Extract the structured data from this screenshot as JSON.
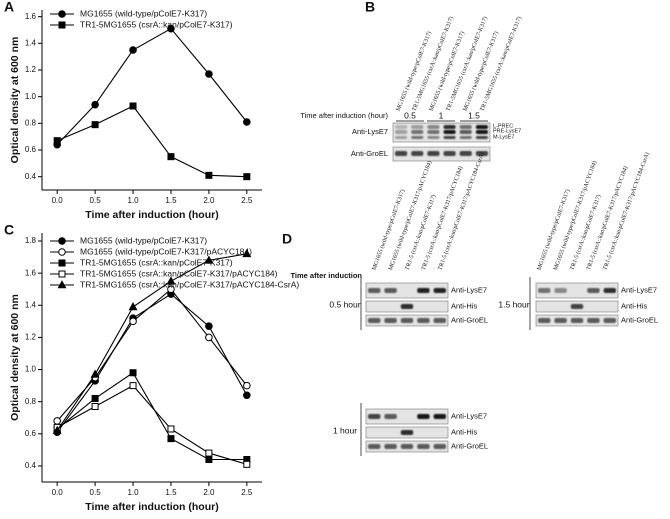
{
  "chart_data": [
    {
      "type": "line",
      "label": "A",
      "xlabel": "Time after induction (hour)",
      "ylabel": "Optical density at 600 nm",
      "x": [
        0,
        0.5,
        1,
        1.5,
        2,
        2.5
      ],
      "xlim": [
        -0.2,
        2.7
      ],
      "ylim": [
        0.3,
        1.65
      ],
      "xticks": [
        {
          "value": 0,
          "label": "0.0"
        },
        0.5,
        {
          "value": 1,
          "label": "1.0"
        },
        1.5,
        {
          "value": 2,
          "label": "2.0"
        },
        2.5
      ],
      "yticks": [
        0.4,
        0.6,
        0.8,
        {
          "value": 1,
          "label": "1.0"
        },
        1.2,
        1.4,
        1.6
      ],
      "grid": false,
      "legend": "upper left",
      "series": [
        {
          "name": "MG1655 (wild-type/pColE7-K317)",
          "color": "#000000",
          "marker": "circle",
          "values": [
            0.64,
            0.94,
            1.35,
            1.51,
            1.17,
            0.81
          ]
        },
        {
          "name": "TR1-5MG1655 (csrA::kan/pColE7-K317)",
          "color": "#000000",
          "marker": "square",
          "values": [
            0.67,
            0.79,
            0.93,
            0.55,
            0.41,
            0.4
          ]
        }
      ]
    },
    {
      "type": "line",
      "label": "C",
      "xlabel": "Time after induction (hour)",
      "ylabel": "Optical density at 600 nm",
      "x": [
        0,
        0.5,
        1,
        1.5,
        2,
        2.5
      ],
      "xlim": [
        -0.2,
        2.7
      ],
      "ylim": [
        0.3,
        1.85
      ],
      "xticks": [
        {
          "value": 0,
          "label": "0.0"
        },
        0.5,
        {
          "value": 1,
          "label": "1.0"
        },
        1.5,
        {
          "value": 2,
          "label": "2.0"
        },
        2.5
      ],
      "yticks": [
        0.4,
        0.6,
        0.8,
        {
          "value": 1,
          "label": "1.0"
        },
        1.2,
        1.4,
        1.6,
        1.8
      ],
      "grid": false,
      "legend": "upper left",
      "series": [
        {
          "name": "MG1655 (wild-type/pColE7-K317)",
          "color": "#000000",
          "marker": "circle",
          "values": [
            0.61,
            0.93,
            1.32,
            1.47,
            1.27,
            0.84
          ]
        },
        {
          "name": "MG1655 (wild-type/pColE7-K317/pACYC184)",
          "color": "#000000",
          "marker": "circle-open",
          "values": [
            0.68,
            0.95,
            1.3,
            1.5,
            1.2,
            0.9
          ]
        },
        {
          "name": "TR1-5MG1655 (csrA::kan/pColE7-K317)",
          "color": "#000000",
          "marker": "square",
          "values": [
            0.63,
            0.82,
            0.98,
            0.57,
            0.44,
            0.44
          ]
        },
        {
          "name": "TR1-5MG1655 (csrA::kan/pColE7-K317/pACYC184)",
          "color": "#000000",
          "marker": "square-open",
          "values": [
            0.64,
            0.77,
            0.9,
            0.63,
            0.48,
            0.41
          ]
        },
        {
          "name": "TR1-5MG1655 (csrA::kan/pColE7-K317/pACYC184-CsrA)",
          "color": "#000000",
          "marker": "triangle",
          "values": [
            0.62,
            0.97,
            1.39,
            1.55,
            1.68,
            1.72
          ]
        }
      ]
    }
  ],
  "blots": {
    "B": {
      "label": "B",
      "lanes": [
        "MG1655 (wild-type/pColE7-K317)",
        "TR1-5MG1655 (csrA::kan/pColE7-K317)",
        "MG1655 (wild-type/pColE7-K317)",
        "TR1-5MG1655 (csrA::kan/pColE7-K317)",
        "MG1655 (wild-type/pColE7-K317)",
        "TR1-5MG1655 (csrA::kan/pColE7-K317)"
      ],
      "time_title": "Time after induction (hour)",
      "times": [
        "0.5",
        "1",
        "1.5"
      ],
      "rows": [
        "Anti-LysE7",
        "Anti-GroEL"
      ],
      "bands": [
        "L-PREC",
        "PRE-LysE7",
        "M-LysE7"
      ]
    },
    "D": {
      "label": "D",
      "lanes": [
        "MG1655 (wild-type/pColE7-K317)",
        "MG1655 (wild-type/pColE7-K317/pACYC184)",
        "TR1-5 (csrA::kan/pColE7-K317)",
        "TR1-5 (csrA::kan/pColE7-K317/pACYC184)",
        "TR1-5 (csrA::kan/pColE7-K317/pACYC184-CsrA)"
      ],
      "time_title": "Time after induction",
      "groups": [
        {
          "time": "0.5 hour",
          "rows": [
            "Anti-LysE7",
            "Anti-His",
            "Anti-GroEL"
          ]
        },
        {
          "time": "1.5 hour",
          "rows": [
            "Anti-LysE7",
            "Anti-His",
            "Anti-GroEL"
          ]
        },
        {
          "time": "1  hour",
          "rows": [
            "Anti-LysE7",
            "Anti-His",
            "Anti-GroEL"
          ]
        }
      ]
    }
  }
}
